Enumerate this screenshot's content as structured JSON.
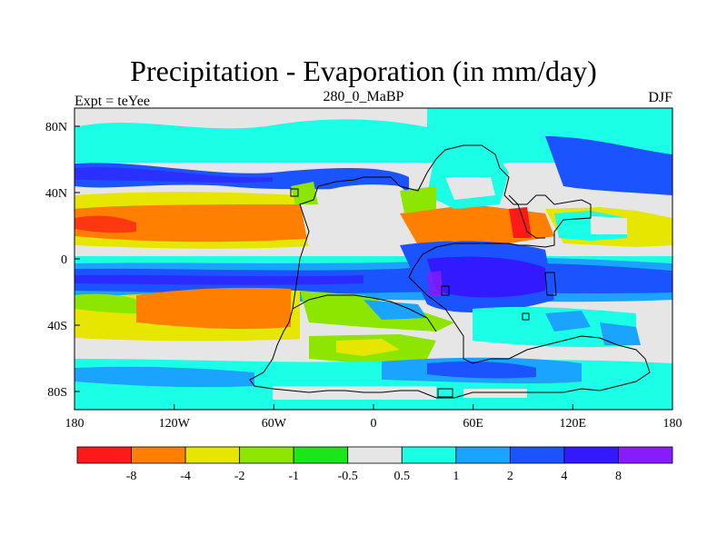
{
  "map": {
    "title": "Precipitation - Evaporation (in mm/day)",
    "subtitle_left": "Expt = teYee",
    "subtitle_center": "280_0_MaBP",
    "subtitle_right": "DJF",
    "lon_ticks": [
      "180",
      "120W",
      "60W",
      "0",
      "60E",
      "120E",
      "180"
    ],
    "lat_ticks": [
      "80N",
      "40N",
      "0",
      "40S",
      "80S"
    ],
    "colorbar": {
      "colors": [
        "#ff1a1a",
        "#ff8000",
        "#e6e600",
        "#8ce600",
        "#1ae61a",
        "#e6e6e6",
        "#1affe6",
        "#1aa3ff",
        "#1a53ff",
        "#3319ff",
        "#8a1aff"
      ],
      "labels": [
        "-8",
        "-4",
        "-2",
        "-1",
        "-0.5",
        "0.5",
        "1",
        "2",
        "4",
        "8"
      ]
    }
  }
}
